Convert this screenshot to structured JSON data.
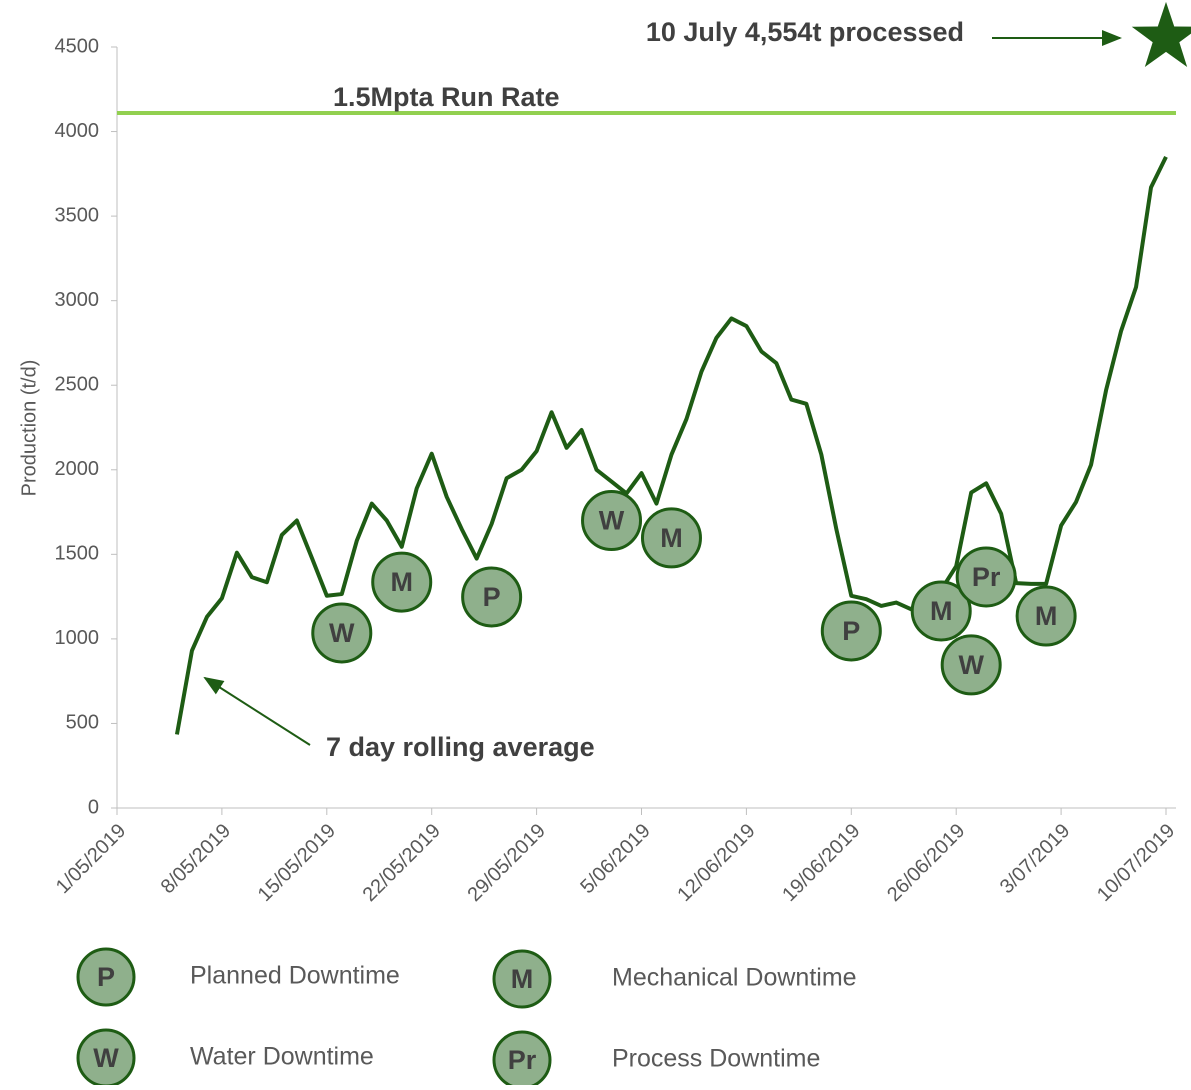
{
  "chart_data": {
    "type": "line",
    "y_label": "Production (t/d)",
    "ylim": [
      0,
      4500
    ],
    "yticks": [
      0,
      500,
      1000,
      1500,
      2000,
      2500,
      3000,
      3500,
      4000,
      4500
    ],
    "xlim": [
      "2019-05-01",
      "2019-07-10"
    ],
    "xticks": [
      {
        "value": "2019-05-01",
        "label": "1/05/2019"
      },
      {
        "value": "2019-05-08",
        "label": "8/05/2019"
      },
      {
        "value": "2019-05-15",
        "label": "15/05/2019"
      },
      {
        "value": "2019-05-22",
        "label": "22/05/2019"
      },
      {
        "value": "2019-05-29",
        "label": "29/05/2019"
      },
      {
        "value": "2019-06-05",
        "label": "5/06/2019"
      },
      {
        "value": "2019-06-12",
        "label": "12/06/2019"
      },
      {
        "value": "2019-06-19",
        "label": "19/06/2019"
      },
      {
        "value": "2019-06-26",
        "label": "26/06/2019"
      },
      {
        "value": "2019-07-03",
        "label": "3/07/2019"
      },
      {
        "value": "2019-07-10",
        "label": "10/07/2019"
      }
    ],
    "x": [
      "2019-05-05",
      "2019-05-06",
      "2019-05-07",
      "2019-05-08",
      "2019-05-09",
      "2019-05-10",
      "2019-05-11",
      "2019-05-12",
      "2019-05-13",
      "2019-05-14",
      "2019-05-15",
      "2019-05-16",
      "2019-05-17",
      "2019-05-18",
      "2019-05-19",
      "2019-05-20",
      "2019-05-21",
      "2019-05-22",
      "2019-05-23",
      "2019-05-24",
      "2019-05-25",
      "2019-05-26",
      "2019-05-27",
      "2019-05-28",
      "2019-05-29",
      "2019-05-30",
      "2019-05-31",
      "2019-06-01",
      "2019-06-02",
      "2019-06-03",
      "2019-06-04",
      "2019-06-05",
      "2019-06-06",
      "2019-06-07",
      "2019-06-08",
      "2019-06-09",
      "2019-06-10",
      "2019-06-11",
      "2019-06-12",
      "2019-06-13",
      "2019-06-14",
      "2019-06-15",
      "2019-06-16",
      "2019-06-17",
      "2019-06-18",
      "2019-06-19",
      "2019-06-20",
      "2019-06-21",
      "2019-06-22",
      "2019-06-23",
      "2019-06-24",
      "2019-06-25",
      "2019-06-26",
      "2019-06-27",
      "2019-06-28",
      "2019-06-29",
      "2019-06-30",
      "2019-07-01",
      "2019-07-02",
      "2019-07-03",
      "2019-07-04",
      "2019-07-05",
      "2019-07-06",
      "2019-07-07",
      "2019-07-08",
      "2019-07-09",
      "2019-07-10"
    ],
    "series": [
      {
        "name": "7 day rolling average",
        "color": "#1e5c14",
        "values": [
          435,
          930,
          1130,
          1240,
          1510,
          1365,
          1335,
          1615,
          1700,
          1480,
          1255,
          1265,
          1580,
          1800,
          1700,
          1545,
          1890,
          2095,
          1840,
          1650,
          1475,
          1680,
          1950,
          2000,
          2110,
          2340,
          2130,
          2235,
          2000,
          1930,
          1860,
          1980,
          1800,
          2090,
          2300,
          2580,
          2780,
          2895,
          2850,
          2700,
          2630,
          2415,
          2390,
          2090,
          1650,
          1255,
          1235,
          1195,
          1215,
          1175,
          1285,
          1290,
          1430,
          1865,
          1920,
          1740,
          1330,
          1325,
          1325,
          1670,
          1810,
          2030,
          2470,
          2820,
          3080,
          3670,
          3850
        ]
      }
    ],
    "run_rate": {
      "label": "1.5Mpta Run Rate",
      "value": 4110,
      "color": "#92d050"
    },
    "record": {
      "label": "10 July 4,554t processed",
      "x": "2019-07-10",
      "value": 4554,
      "color": "#1e5c14"
    },
    "markers": [
      {
        "label": "W",
        "x": "2019-05-16",
        "value": 1035
      },
      {
        "label": "M",
        "x": "2019-05-20",
        "value": 1336
      },
      {
        "label": "P",
        "x": "2019-05-26",
        "value": 1248
      },
      {
        "label": "W",
        "x": "2019-06-03",
        "value": 1700
      },
      {
        "label": "M",
        "x": "2019-06-07",
        "value": 1597
      },
      {
        "label": "P",
        "x": "2019-06-19",
        "value": 1047
      },
      {
        "label": "M",
        "x": "2019-06-25",
        "value": 1165
      },
      {
        "label": "W",
        "x": "2019-06-27",
        "value": 846
      },
      {
        "label": "Pr",
        "x": "2019-06-28",
        "value": 1366
      },
      {
        "label": "M",
        "x": "2019-07-02",
        "value": 1135
      }
    ],
    "marker_fill": "#8fb08c",
    "legend": [
      {
        "label": "P",
        "text": "Planned Downtime"
      },
      {
        "label": "M",
        "text": "Mechanical Downtime"
      },
      {
        "label": "W",
        "text": "Water Downtime"
      },
      {
        "label": "Pr",
        "text": "Process Downtime"
      }
    ]
  }
}
